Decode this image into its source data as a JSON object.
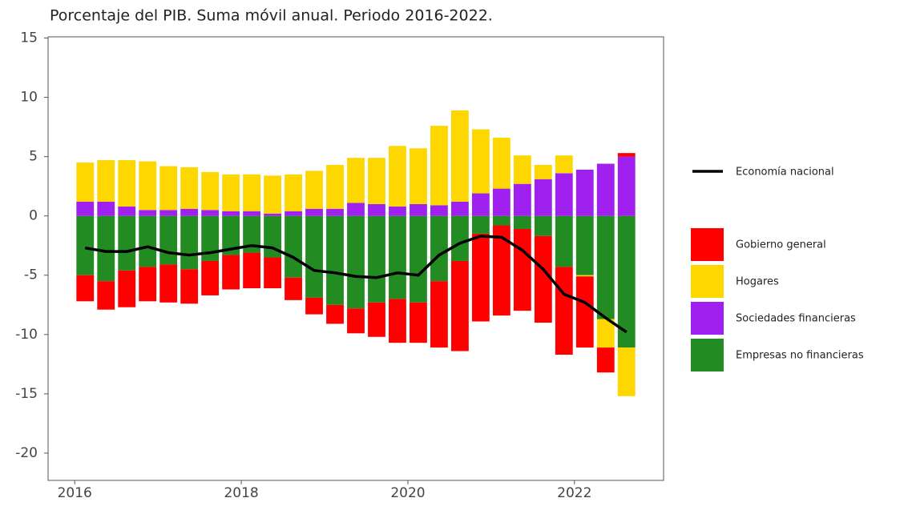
{
  "chart_data": {
    "type": "bar",
    "title": "Porcentaje del PIB. Suma móvil anual. Periodo 2016-2022.",
    "x": [
      2016.125,
      2016.375,
      2016.625,
      2016.875,
      2017.125,
      2017.375,
      2017.625,
      2017.875,
      2018.125,
      2018.375,
      2018.625,
      2018.875,
      2019.125,
      2019.375,
      2019.625,
      2019.875,
      2020.125,
      2020.375,
      2020.625,
      2020.875,
      2021.125,
      2021.375,
      2021.625,
      2021.875,
      2022.125,
      2022.375,
      2022.625
    ],
    "series": [
      {
        "name": "Gobierno general",
        "color": "#ff0000",
        "values": [
          -2.2,
          -2.4,
          -3.1,
          -2.9,
          -3.2,
          -2.9,
          -2.9,
          -2.9,
          -3.0,
          -2.6,
          -1.9,
          -1.4,
          -1.6,
          -2.1,
          -2.9,
          -3.7,
          -3.4,
          -5.6,
          -7.6,
          -7.4,
          -7.6,
          -6.9,
          -7.3,
          -7.4,
          -6.0,
          -2.1,
          0.3
        ]
      },
      {
        "name": "Hogares",
        "color": "#ffd700",
        "values": [
          3.3,
          3.5,
          3.9,
          4.1,
          3.7,
          3.5,
          3.2,
          3.1,
          3.1,
          3.2,
          3.1,
          3.2,
          3.7,
          3.8,
          3.9,
          5.1,
          4.7,
          6.7,
          7.7,
          5.4,
          4.3,
          2.4,
          1.2,
          1.5,
          -0.1,
          -2.4,
          -4.1
        ]
      },
      {
        "name": "Sociedades financieras",
        "color": "#a020f0",
        "values": [
          1.2,
          1.2,
          0.8,
          0.5,
          0.5,
          0.6,
          0.5,
          0.4,
          0.4,
          0.2,
          0.4,
          0.6,
          0.6,
          1.1,
          1.0,
          0.8,
          1.0,
          0.9,
          1.2,
          1.9,
          2.3,
          2.7,
          3.1,
          3.6,
          3.9,
          4.4,
          5.0
        ]
      },
      {
        "name": "Empresas no financieras",
        "color": "#228b22",
        "values": [
          -5.0,
          -5.5,
          -4.6,
          -4.3,
          -4.1,
          -4.5,
          -3.8,
          -3.3,
          -3.1,
          -3.5,
          -5.2,
          -6.9,
          -7.5,
          -7.8,
          -7.3,
          -7.0,
          -7.3,
          -5.5,
          -3.8,
          -1.5,
          -0.8,
          -1.1,
          -1.7,
          -4.3,
          -5.0,
          -8.7,
          -11.1
        ]
      }
    ],
    "line": {
      "name": "Economía nacional",
      "color": "#000000",
      "values": [
        -2.7,
        -3.0,
        -3.0,
        -2.6,
        -3.1,
        -3.3,
        -3.1,
        -2.8,
        -2.5,
        -2.7,
        -3.5,
        -4.6,
        -4.8,
        -5.1,
        -5.2,
        -4.8,
        -5.0,
        -3.3,
        -2.3,
        -1.7,
        -1.8,
        -2.9,
        -4.5,
        -6.6,
        -7.3,
        -8.6,
        -9.8
      ]
    },
    "xlim": [
      2015.68,
      2023.07
    ],
    "xticks": [
      2016,
      2018,
      2020,
      2022
    ],
    "ylim": [
      -22.3,
      15.1
    ],
    "yticks": [
      -20,
      -15,
      -10,
      -5,
      0,
      5,
      10,
      15
    ],
    "grid": false
  }
}
